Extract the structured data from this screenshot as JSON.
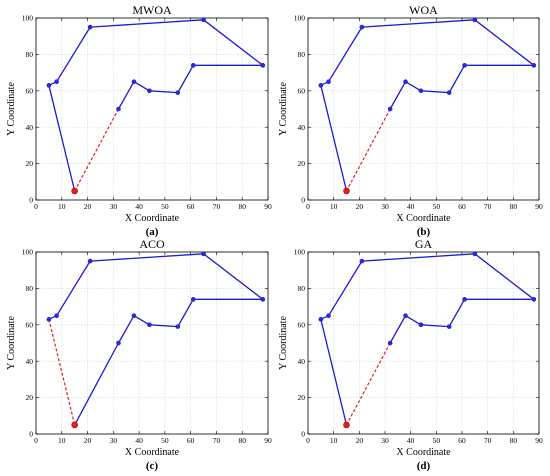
{
  "colors": {
    "route": "#1c1cd0",
    "node": "#2b2bd8",
    "return": "#e02020",
    "grid": "#d4d4d4",
    "axis": "#000000"
  },
  "chart_data": [
    {
      "type": "line",
      "title": "MWOA",
      "caption": "(a)",
      "xlabel": "X Coordinate",
      "ylabel": "Y Coordinate",
      "xlim": [
        0,
        90
      ],
      "ylim": [
        0,
        100
      ],
      "xticks": [
        "0",
        "10",
        "20",
        "30",
        "40",
        "50",
        "60",
        "70",
        "80",
        "90"
      ],
      "yticks": [
        "0",
        "20",
        "40",
        "60",
        "80",
        "100"
      ],
      "grid": true,
      "route": [
        [
          15,
          5
        ],
        [
          5,
          63
        ],
        [
          8,
          65
        ],
        [
          21,
          95
        ],
        [
          65,
          99
        ],
        [
          88,
          74
        ],
        [
          61,
          74
        ],
        [
          55,
          59
        ],
        [
          44,
          60
        ],
        [
          38,
          65
        ],
        [
          32,
          50
        ]
      ],
      "return_segment": [
        [
          32,
          50
        ],
        [
          15,
          5
        ]
      ],
      "start": [
        15,
        5
      ]
    },
    {
      "type": "line",
      "title": "WOA",
      "caption": "(b)",
      "xlabel": "X Coordinate",
      "ylabel": "Y Coordinate",
      "xlim": [
        0,
        90
      ],
      "ylim": [
        0,
        100
      ],
      "xticks": [
        "0",
        "10",
        "20",
        "30",
        "40",
        "50",
        "60",
        "70",
        "80",
        "90"
      ],
      "yticks": [
        "0",
        "20",
        "40",
        "60",
        "80",
        "100"
      ],
      "grid": true,
      "route": [
        [
          15,
          5
        ],
        [
          5,
          63
        ],
        [
          8,
          65
        ],
        [
          21,
          95
        ],
        [
          65,
          99
        ],
        [
          88,
          74
        ],
        [
          61,
          74
        ],
        [
          55,
          59
        ],
        [
          44,
          60
        ],
        [
          38,
          65
        ],
        [
          32,
          50
        ]
      ],
      "return_segment": [
        [
          32,
          50
        ],
        [
          15,
          5
        ]
      ],
      "start": [
        15,
        5
      ]
    },
    {
      "type": "line",
      "title": "ACO",
      "caption": "(c)",
      "xlabel": "X Coordinate",
      "ylabel": "Y Coordinate",
      "xlim": [
        0,
        90
      ],
      "ylim": [
        0,
        100
      ],
      "xticks": [
        "0",
        "10",
        "20",
        "30",
        "40",
        "50",
        "60",
        "70",
        "80",
        "90"
      ],
      "yticks": [
        "0",
        "20",
        "40",
        "60",
        "80",
        "100"
      ],
      "grid": true,
      "route": [
        [
          15,
          5
        ],
        [
          32,
          50
        ],
        [
          38,
          65
        ],
        [
          44,
          60
        ],
        [
          55,
          59
        ],
        [
          61,
          74
        ],
        [
          88,
          74
        ],
        [
          65,
          99
        ],
        [
          21,
          95
        ],
        [
          8,
          65
        ],
        [
          5,
          63
        ]
      ],
      "return_segment": [
        [
          5,
          63
        ],
        [
          15,
          5
        ]
      ],
      "start": [
        15,
        5
      ]
    },
    {
      "type": "line",
      "title": "GA",
      "caption": "(d)",
      "xlabel": "X Coordinate",
      "ylabel": "Y Coordinate",
      "xlim": [
        0,
        90
      ],
      "ylim": [
        0,
        100
      ],
      "xticks": [
        "0",
        "10",
        "20",
        "30",
        "40",
        "50",
        "60",
        "70",
        "80",
        "90"
      ],
      "yticks": [
        "0",
        "20",
        "40",
        "60",
        "80",
        "100"
      ],
      "grid": true,
      "route": [
        [
          15,
          5
        ],
        [
          5,
          63
        ],
        [
          8,
          65
        ],
        [
          21,
          95
        ],
        [
          65,
          99
        ],
        [
          88,
          74
        ],
        [
          61,
          74
        ],
        [
          55,
          59
        ],
        [
          44,
          60
        ],
        [
          38,
          65
        ],
        [
          32,
          50
        ]
      ],
      "return_segment": [
        [
          32,
          50
        ],
        [
          15,
          5
        ]
      ],
      "start": [
        15,
        5
      ]
    }
  ]
}
